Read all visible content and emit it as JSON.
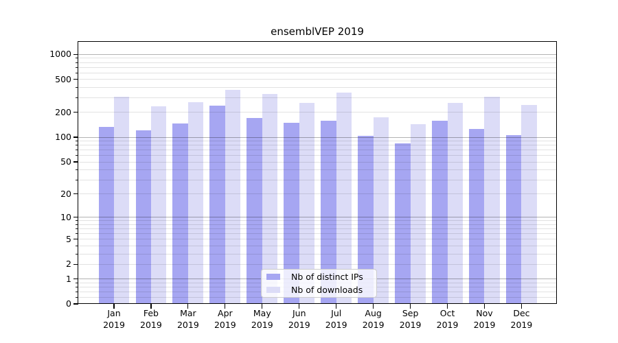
{
  "title": "ensemblVEP 2019",
  "chart_data": {
    "type": "bar",
    "title": "ensemblVEP 2019",
    "x_months": [
      "Jan",
      "Feb",
      "Mar",
      "Apr",
      "May",
      "Jun",
      "Jul",
      "Aug",
      "Sep",
      "Oct",
      "Nov",
      "Dec"
    ],
    "x_year": "2019",
    "series": [
      {
        "name": "Nb of distinct IPs",
        "color": "#a6a6f2",
        "values": [
          133,
          121,
          147,
          240,
          170,
          151,
          159,
          104,
          84,
          159,
          127,
          106
        ]
      },
      {
        "name": "Nb of downloads",
        "color": "#dcdcf7",
        "values": [
          307,
          239,
          265,
          375,
          335,
          260,
          349,
          175,
          144,
          260,
          307,
          244
        ]
      }
    ],
    "yscale": "log1p",
    "ylim": [
      0,
      1455
    ],
    "y_tick_values": [
      0,
      1,
      2,
      5,
      10,
      20,
      50,
      100,
      200,
      500,
      1000
    ],
    "y_tick_labels": [
      "0",
      "1",
      "2",
      "5",
      "10",
      "20",
      "50",
      "100",
      "200",
      "500",
      "1000"
    ],
    "grid": true,
    "major_grid_values": [
      1,
      10,
      100,
      1000
    ],
    "minor_grid_values": [
      0.2,
      0.4,
      0.6,
      0.8,
      2,
      3,
      4,
      5,
      6,
      7,
      8,
      9,
      20,
      30,
      40,
      50,
      60,
      70,
      80,
      90,
      200,
      300,
      400,
      500,
      600,
      700,
      800,
      900
    ],
    "legend": {
      "entries": [
        "Nb of distinct IPs",
        "Nb of downloads"
      ],
      "position": "lower-center"
    }
  },
  "colors": {
    "bar_distinct_ips": "#a6a6f2",
    "bar_downloads": "#dcdcf7",
    "grid_major": "#b3b3b3",
    "grid_minor": "#e2e2e2",
    "axis": "#000000",
    "background": "#ffffff",
    "legend_border": "#cccccc"
  }
}
